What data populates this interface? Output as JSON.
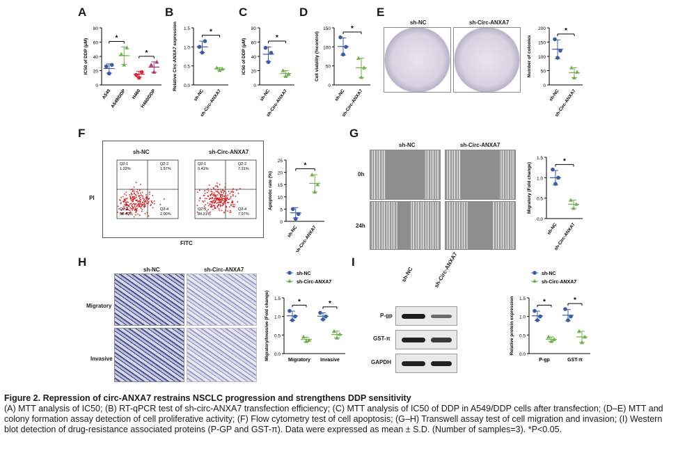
{
  "panels": {
    "A": {
      "letter": "A",
      "ylabel": "IC50 of DDP (μM)",
      "categories": [
        "A549",
        "A549/DDP",
        "H460",
        "H460/DDP"
      ],
      "ticks": [
        "0",
        "20",
        "40",
        "60",
        "80"
      ],
      "sig": [
        "*",
        "*"
      ]
    },
    "B": {
      "letter": "B",
      "ylabel": "Relative Circ-ANXA7 expression",
      "categories": [
        "sh-NC",
        "sh-Circ-ANXA7"
      ],
      "ticks": [
        "0.0",
        "0.5",
        "1.0",
        "1.5"
      ],
      "sig": "*"
    },
    "C": {
      "letter": "C",
      "ylabel": "IC50 of DDP (μM)",
      "categories": [
        "sh-NC",
        "sh-Circ-ANXA7"
      ],
      "ticks": [
        "0",
        "20",
        "40",
        "60",
        "80"
      ],
      "sig": "*"
    },
    "D": {
      "letter": "D",
      "ylabel": "Cell viability (%control)",
      "categories": [
        "sh-NC",
        "sh-Circ-ANXA7"
      ],
      "ticks": [
        "0",
        "50",
        "100",
        "150"
      ],
      "sig": "*"
    },
    "E": {
      "letter": "E",
      "groups": [
        "sh-NC",
        "sh-Circ-ANXA7"
      ],
      "ylabel": "Number of colonies",
      "categories": [
        "sh-NC",
        "sh-Circ-ANXA7"
      ],
      "ticks": [
        "0",
        "50",
        "100",
        "150",
        "200"
      ],
      "sig": "*"
    },
    "F": {
      "letter": "F",
      "groups": [
        "sh-NC",
        "sh-Circ-ANXA7"
      ],
      "y_axis": "PI",
      "x_axis": "FITC",
      "quadrants_nc": {
        "q1": "Q2-1\n1.03%",
        "q2": "Q2-2\n1.57%",
        "q3": "Q2-3\n95.40%",
        "q4": "Q2-4\n2.00%"
      },
      "quadrants_sh": {
        "q1": "Q2-1\n0.41%",
        "q2": "Q2-2\n7.31%",
        "q3": "Q2-3\n84.31%",
        "q4": "Q2-4\n7.97%"
      },
      "ylabel": "Apoptotic rate (%)",
      "categories": [
        "sh-NC",
        "sh-Circ-ANXA7"
      ],
      "ticks": [
        "0",
        "5",
        "10",
        "15",
        "20",
        "25"
      ],
      "sig": "*"
    },
    "G": {
      "letter": "G",
      "groups": [
        "sh-NC",
        "sh-Circ-ANXA7"
      ],
      "rows": [
        "0h",
        "24h"
      ],
      "ylabel": "Migratory (Fold change)",
      "categories": [
        "sh-NC",
        "sh-Circ-ANXA7"
      ],
      "ticks": [
        "0.0",
        "0.5",
        "1.0",
        "1.5"
      ],
      "sig": "*"
    },
    "H": {
      "letter": "H",
      "groups": [
        "sh-NC",
        "sh-Circ-ANXA7"
      ],
      "rows": [
        "Migratory",
        "Invasive"
      ],
      "legend": [
        "sh-NC",
        "sh-Circ-ANXA7"
      ],
      "ylabel": "Migratory/Invasive (Fold change)",
      "categories": [
        "Migratory",
        "Invasive"
      ],
      "ticks": [
        "0.0",
        "0.5",
        "1.0",
        "1.5"
      ],
      "sig": [
        "*",
        "*"
      ]
    },
    "I": {
      "letter": "I",
      "groups": [
        "sh-NC",
        "sh-Circ-ANXA7"
      ],
      "blots": [
        "P-gp",
        "GST-π",
        "GAPDH"
      ],
      "legend": [
        "sh-NC",
        "sh-Circ-ANXA7"
      ],
      "ylabel": "Relative protein expression",
      "categories": [
        "P-gp",
        "GST-π"
      ],
      "ticks": [
        "0.0",
        "0.5",
        "1.0",
        "1.5"
      ],
      "sig": [
        "*",
        "*"
      ]
    }
  },
  "chart_data": [
    {
      "panel": "A",
      "type": "scatter",
      "categories": [
        "A549",
        "A549/DDP",
        "H460",
        "H460/DDP"
      ],
      "values": [
        [
          26,
          16,
          28
        ],
        [
          43,
          28,
          52
        ],
        [
          14,
          10,
          18
        ],
        [
          28,
          18,
          32
        ]
      ],
      "means": [
        23,
        41,
        15,
        25
      ],
      "ylim": [
        0,
        80
      ],
      "ylabel": "IC50 of DDP (μM)"
    },
    {
      "panel": "B",
      "type": "scatter",
      "categories": [
        "sh-NC",
        "sh-Circ-ANXA7"
      ],
      "values": [
        [
          1.0,
          0.85,
          1.15
        ],
        [
          0.45,
          0.38,
          0.42
        ]
      ],
      "means": [
        1.0,
        0.42
      ],
      "ylim": [
        0,
        1.5
      ],
      "ylabel": "Relative Circ-ANXA7 expression"
    },
    {
      "panel": "C",
      "type": "scatter",
      "categories": [
        "sh-NC",
        "sh-Circ-ANXA7"
      ],
      "values": [
        [
          52,
          32,
          45
        ],
        [
          20,
          12,
          15
        ]
      ],
      "means": [
        43,
        16
      ],
      "ylim": [
        0,
        80
      ],
      "ylabel": "IC50 of DDP (μM)"
    },
    {
      "panel": "D",
      "type": "scatter",
      "categories": [
        "sh-NC",
        "sh-Circ-ANXA7"
      ],
      "values": [
        [
          125,
          80,
          100
        ],
        [
          70,
          20,
          45
        ]
      ],
      "means": [
        101,
        45
      ],
      "ylim": [
        0,
        150
      ],
      "ylabel": "Cell viability (%control)"
    },
    {
      "panel": "E",
      "type": "scatter",
      "categories": [
        "sh-NC",
        "sh-Circ-ANXA7"
      ],
      "values": [
        [
          160,
          95,
          120
        ],
        [
          60,
          25,
          45
        ]
      ],
      "means": [
        125,
        43
      ],
      "ylim": [
        0,
        200
      ],
      "ylabel": "Number of colonies"
    },
    {
      "panel": "F",
      "type": "scatter",
      "categories": [
        "sh-NC",
        "sh-Circ-ANXA7"
      ],
      "values": [
        [
          5,
          1,
          3
        ],
        [
          19,
          12,
          15
        ]
      ],
      "means": [
        3.5,
        15.5
      ],
      "ylim": [
        0,
        25
      ],
      "ylabel": "Apoptotic rate (%)"
    },
    {
      "panel": "G",
      "type": "scatter",
      "categories": [
        "sh-NC",
        "sh-Circ-ANXA7"
      ],
      "values": [
        [
          1.2,
          0.85,
          1.0
        ],
        [
          0.45,
          0.25,
          0.35
        ]
      ],
      "means": [
        1.0,
        0.35
      ],
      "ylim": [
        0,
        1.5
      ],
      "ylabel": "Migratory (Fold change)"
    },
    {
      "panel": "H",
      "type": "scatter",
      "categories": [
        "Migratory",
        "Invasive"
      ],
      "series": [
        {
          "name": "sh-NC",
          "values": [
            [
              1.15,
              0.9,
              1.0
            ],
            [
              1.1,
              0.92,
              1.0
            ]
          ]
        },
        {
          "name": "sh-Circ-ANXA7",
          "values": [
            [
              0.45,
              0.33,
              0.36
            ],
            [
              0.6,
              0.42,
              0.52
            ]
          ]
        }
      ],
      "ylim": [
        0,
        1.5
      ],
      "ylabel": "Migratory/Invasive (Fold change)"
    },
    {
      "panel": "I",
      "type": "scatter",
      "categories": [
        "P-gp",
        "GST-π"
      ],
      "series": [
        {
          "name": "sh-NC",
          "values": [
            [
              1.15,
              0.9,
              1.0
            ],
            [
              1.2,
              0.9,
              1.0
            ]
          ]
        },
        {
          "name": "sh-Circ-ANXA7",
          "values": [
            [
              0.45,
              0.33,
              0.38
            ],
            [
              0.6,
              0.3,
              0.45
            ]
          ]
        }
      ],
      "ylim": [
        0,
        1.5
      ],
      "ylabel": "Relative protein expression"
    }
  ],
  "caption": {
    "title": "Figure 2. Repression of circ-ANXA7 restrains NSCLC progression and strengthens DDP sensitivity",
    "body": "(A) MTT analysis of IC50; (B) RT-qPCR test of sh-circ-ANXA7 transfection efficiency; (C) MTT analysis of IC50 of DDP in A549/DDP cells after transfection; (D–E) MTT and colony formation assay detection of cell proliferative activity; (F) Flow cytometry test of cell apoptosis; (G–H) Transwell assay test of cell migration and invasion; (I) Western blot detection of drug-resistance associated proteins (P-GP and GST-π). Data were expressed as mean ± S.D. (Number of samples=3). *P<0.05."
  },
  "colors": {
    "blue": "#3a5ba8",
    "green": "#6fb04a",
    "red": "#d9283a",
    "purple": "#a8327a",
    "flow": "#d81e1e"
  }
}
